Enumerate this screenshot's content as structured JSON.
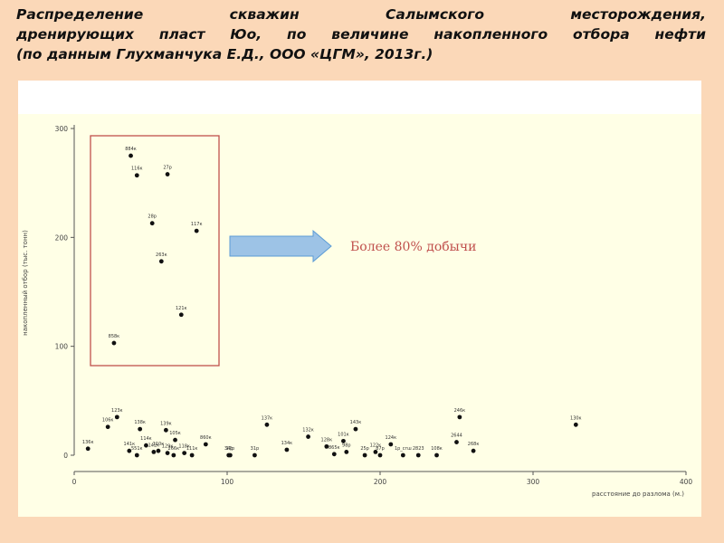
{
  "slide": {
    "title_lines": [
      "Распределение скважин Салымского месторождения,",
      "дренирующих пласт Юо, по величине накопленного отбора нефти",
      "(по данным Глухманчука Е.Д., ООО «ЦГМ», 2013г.)"
    ]
  },
  "chart_data": {
    "type": "scatter",
    "ylabel": "накопленный отбор (тыс. тонн)",
    "xlabel": "расстояние до разлома (м.)",
    "xlim": [
      0,
      400
    ],
    "ylim": [
      0,
      300
    ],
    "xticks": [
      "0",
      "100",
      "200",
      "300",
      "400"
    ],
    "yticks": [
      "0",
      "100",
      "200",
      "300"
    ],
    "grid": false,
    "annotation": "Более 80% добычи",
    "colors": {
      "highlight_box": "#c0504d",
      "arrow_fill": "#9dc3e6",
      "arrow_stroke": "#5b9bd5",
      "points": "#111111"
    },
    "points": [
      {
        "label": "884к",
        "x": 37,
        "y": 275
      },
      {
        "label": "116к",
        "x": 41,
        "y": 257
      },
      {
        "label": "27р",
        "x": 61,
        "y": 258
      },
      {
        "label": "28р",
        "x": 51,
        "y": 213
      },
      {
        "label": "117к",
        "x": 80,
        "y": 206
      },
      {
        "label": "263к",
        "x": 57,
        "y": 178
      },
      {
        "label": "121к",
        "x": 70,
        "y": 129
      },
      {
        "label": "858к",
        "x": 26,
        "y": 103
      },
      {
        "label": "136к",
        "x": 9,
        "y": 6
      },
      {
        "label": "106к",
        "x": 22,
        "y": 26
      },
      {
        "label": "123к",
        "x": 28,
        "y": 35
      },
      {
        "label": "141к",
        "x": 36,
        "y": 4
      },
      {
        "label": "551к",
        "x": 41,
        "y": 0
      },
      {
        "label": "138к",
        "x": 43,
        "y": 24
      },
      {
        "label": "114к",
        "x": 47,
        "y": 9
      },
      {
        "label": "142к",
        "x": 52,
        "y": 3
      },
      {
        "label": "110к",
        "x": 55,
        "y": 4
      },
      {
        "label": "139к",
        "x": 60,
        "y": 23
      },
      {
        "label": "129к",
        "x": 61,
        "y": 2
      },
      {
        "label": "266к",
        "x": 65,
        "y": 0
      },
      {
        "label": "105к",
        "x": 66,
        "y": 14
      },
      {
        "label": "118к",
        "x": 72,
        "y": 2
      },
      {
        "label": "111к",
        "x": 77,
        "y": 0
      },
      {
        "label": "860к",
        "x": 86,
        "y": 10
      },
      {
        "label": "34р",
        "x": 101,
        "y": 0
      },
      {
        "label": "17р",
        "x": 102,
        "y": 0
      },
      {
        "label": "31р",
        "x": 118,
        "y": 0
      },
      {
        "label": "137к",
        "x": 126,
        "y": 28
      },
      {
        "label": "134к",
        "x": 139,
        "y": 5
      },
      {
        "label": "132к",
        "x": 153,
        "y": 17
      },
      {
        "label": "128к",
        "x": 165,
        "y": 8
      },
      {
        "label": "865к",
        "x": 170,
        "y": 1
      },
      {
        "label": "101к",
        "x": 176,
        "y": 13
      },
      {
        "label": "98р",
        "x": 178,
        "y": 3
      },
      {
        "label": "143к",
        "x": 184,
        "y": 24
      },
      {
        "label": "25р",
        "x": 190,
        "y": 0
      },
      {
        "label": "122к",
        "x": 197,
        "y": 3
      },
      {
        "label": "87р",
        "x": 200,
        "y": 0
      },
      {
        "label": "124к",
        "x": 207,
        "y": 10
      },
      {
        "label": "1р_сгш",
        "x": 215,
        "y": 0
      },
      {
        "label": "2823",
        "x": 225,
        "y": 0
      },
      {
        "label": "108к",
        "x": 237,
        "y": 0
      },
      {
        "label": "246к",
        "x": 252,
        "y": 35
      },
      {
        "label": "2644",
        "x": 250,
        "y": 12
      },
      {
        "label": "268к",
        "x": 261,
        "y": 4
      },
      {
        "label": "130к",
        "x": 328,
        "y": 28
      }
    ]
  }
}
